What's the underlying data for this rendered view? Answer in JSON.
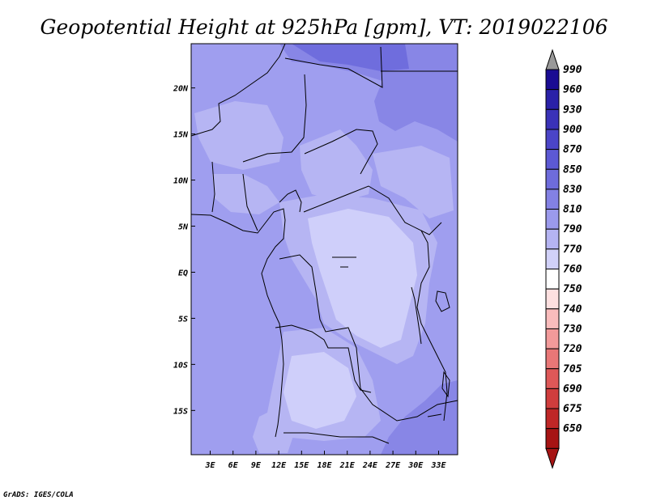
{
  "chart_data": {
    "type": "heatmap",
    "title": "Geopotential Height at 925hPa [gpm], VT: 2019022106",
    "x_ticks": [
      "3E",
      "6E",
      "9E",
      "12E",
      "15E",
      "18E",
      "21E",
      "24E",
      "27E",
      "30E",
      "33E"
    ],
    "x_tick_values": [
      3,
      6,
      9,
      12,
      15,
      18,
      21,
      24,
      27,
      30,
      33
    ],
    "y_ticks": [
      "20N",
      "15N",
      "10N",
      "5N",
      "EQ",
      "5S",
      "10S",
      "15S"
    ],
    "y_tick_values": [
      20,
      15,
      10,
      5,
      0,
      -5,
      -10,
      -15
    ],
    "xlim": [
      0.5,
      35.5
    ],
    "ylim": [
      -19.8,
      24.8
    ],
    "colorbar": {
      "labels": [
        "990",
        "960",
        "930",
        "900",
        "870",
        "850",
        "830",
        "810",
        "790",
        "770",
        "760",
        "750",
        "740",
        "730",
        "720",
        "705",
        "690",
        "675",
        "650"
      ],
      "colors": [
        "#999999",
        "#1a0c93",
        "#2a21a8",
        "#3a32b8",
        "#4b45c8",
        "#5c59d4",
        "#6e6cdc",
        "#8381e4",
        "#9b9aec",
        "#b5b4f2",
        "#d1d1f8",
        "#ffffff",
        "#fde0e0",
        "#f9bcbc",
        "#f29a9a",
        "#e97777",
        "#de5858",
        "#d03d3d",
        "#bf2727",
        "#a61414"
      ],
      "extend": "both"
    },
    "credit": "GrADS: IGES/COLA"
  }
}
